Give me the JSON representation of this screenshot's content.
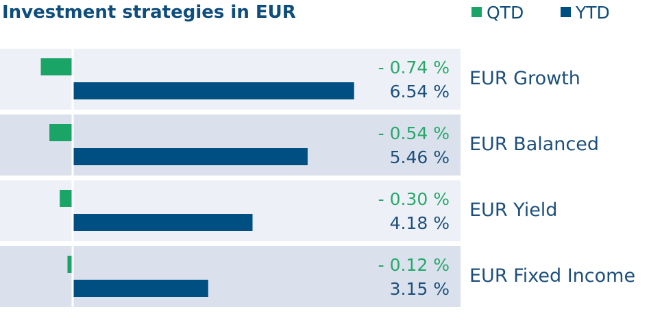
{
  "colors": {
    "qtd": "#1aa567",
    "ytd": "#004f83",
    "row_light": "#edf1f7",
    "row_dark": "#dae1ec",
    "baseline": "#ffffff"
  },
  "chart_data": {
    "type": "bar",
    "title": "Investment strategies in EUR",
    "legend_position": "top-right",
    "categories": [
      "EUR Growth",
      "EUR Balanced",
      "EUR Yield",
      "EUR Fixed Income"
    ],
    "series": [
      {
        "name": "QTD",
        "values": [
          -0.74,
          -0.54,
          -0.3,
          -0.12
        ],
        "labels": [
          "- 0.74 %",
          "- 0.54 %",
          "- 0.30 %",
          "- 0.12 %"
        ]
      },
      {
        "name": "YTD",
        "values": [
          6.54,
          5.46,
          4.18,
          3.15
        ],
        "labels": [
          "6.54 %",
          "5.46 %",
          "4.18 %",
          "3.15 %"
        ]
      }
    ]
  }
}
